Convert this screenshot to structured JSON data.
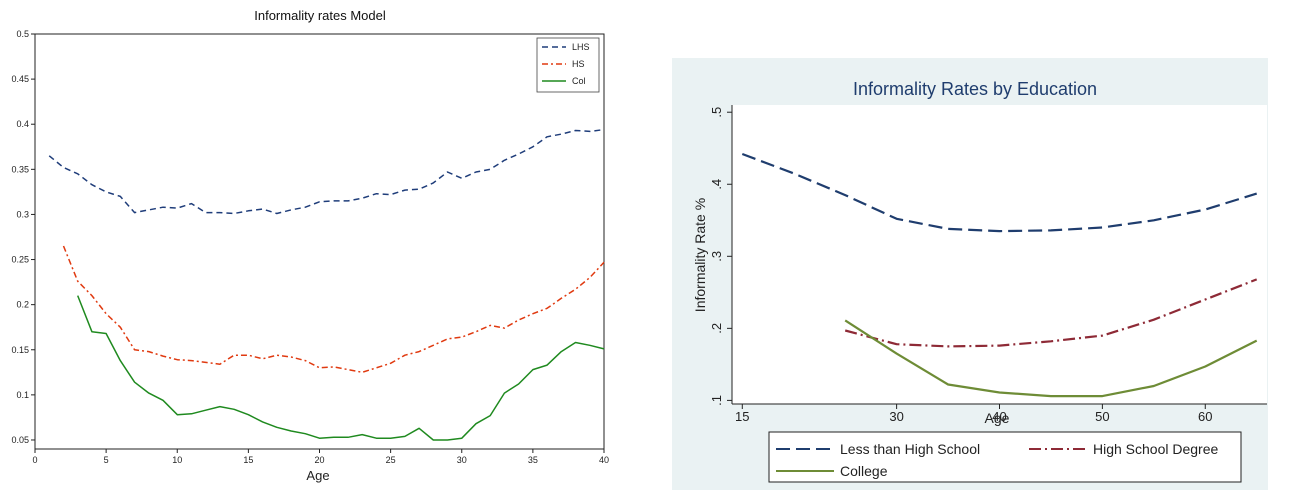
{
  "chart_data": [
    {
      "type": "line",
      "title": "Informality rates Model",
      "xlabel": "Age",
      "ylabel": "",
      "xlim": [
        0,
        40
      ],
      "ylim": [
        0.04,
        0.5
      ],
      "xticks": [
        0,
        5,
        10,
        15,
        20,
        25,
        30,
        35,
        40
      ],
      "yticks": [
        0.05,
        0.1,
        0.15,
        0.2,
        0.25,
        0.3,
        0.35,
        0.4,
        0.45,
        0.5
      ],
      "xtick_labels": [
        "0",
        "5",
        "10",
        "15",
        "20",
        "25",
        "30",
        "35",
        "40"
      ],
      "ytick_labels": [
        "0.05",
        "0.1",
        "0.15",
        "0.2",
        "0.25",
        "0.3",
        "0.35",
        "0.4",
        "0.45",
        "0.5"
      ],
      "grid": false,
      "legend_position": "top-right",
      "series": [
        {
          "name": "LHS",
          "color": "#1f3d7a",
          "dash": "dashed",
          "x": [
            1,
            2,
            3,
            4,
            5,
            6,
            7,
            8,
            9,
            10,
            11,
            12,
            13,
            14,
            15,
            16,
            17,
            18,
            19,
            20,
            21,
            22,
            23,
            24,
            25,
            26,
            27,
            28,
            29,
            30,
            31,
            32,
            33,
            34,
            35,
            36,
            37,
            38,
            39,
            40
          ],
          "y": [
            0.365,
            0.352,
            0.345,
            0.333,
            0.325,
            0.32,
            0.302,
            0.305,
            0.308,
            0.307,
            0.312,
            0.302,
            0.302,
            0.301,
            0.304,
            0.306,
            0.301,
            0.305,
            0.308,
            0.314,
            0.315,
            0.315,
            0.318,
            0.323,
            0.322,
            0.327,
            0.328,
            0.335,
            0.347,
            0.34,
            0.347,
            0.35,
            0.36,
            0.367,
            0.375,
            0.386,
            0.389,
            0.393,
            0.392,
            0.394
          ]
        },
        {
          "name": "HS",
          "color": "#e03a10",
          "dash": "dashdot",
          "x": [
            2,
            3,
            4,
            5,
            6,
            7,
            8,
            9,
            10,
            11,
            12,
            13,
            14,
            15,
            16,
            17,
            18,
            19,
            20,
            21,
            22,
            23,
            24,
            25,
            26,
            27,
            28,
            29,
            30,
            31,
            32,
            33,
            34,
            35,
            36,
            37,
            38,
            39,
            40
          ],
          "y": [
            0.265,
            0.226,
            0.21,
            0.19,
            0.175,
            0.15,
            0.148,
            0.143,
            0.139,
            0.138,
            0.136,
            0.134,
            0.144,
            0.144,
            0.14,
            0.144,
            0.142,
            0.138,
            0.13,
            0.131,
            0.128,
            0.125,
            0.13,
            0.135,
            0.144,
            0.148,
            0.155,
            0.162,
            0.164,
            0.17,
            0.177,
            0.174,
            0.183,
            0.19,
            0.196,
            0.207,
            0.217,
            0.23,
            0.247
          ]
        },
        {
          "name": "Col",
          "color": "#1f8a1f",
          "dash": "solid",
          "x": [
            3,
            4,
            5,
            6,
            7,
            8,
            9,
            10,
            11,
            12,
            13,
            14,
            15,
            16,
            17,
            18,
            19,
            20,
            21,
            22,
            23,
            24,
            25,
            26,
            27,
            28,
            29,
            30,
            31,
            32,
            33,
            34,
            35,
            36,
            37,
            38,
            39,
            40
          ],
          "y": [
            0.21,
            0.17,
            0.168,
            0.138,
            0.114,
            0.102,
            0.094,
            0.078,
            0.079,
            0.083,
            0.087,
            0.084,
            0.078,
            0.07,
            0.064,
            0.06,
            0.057,
            0.052,
            0.053,
            0.053,
            0.056,
            0.052,
            0.052,
            0.054,
            0.063,
            0.05,
            0.05,
            0.052,
            0.068,
            0.077,
            0.102,
            0.112,
            0.128,
            0.133,
            0.148,
            0.158,
            0.155,
            0.151
          ]
        }
      ]
    },
    {
      "type": "line",
      "title": "Informality Rates by Education",
      "xlabel": "Age",
      "ylabel": "Informality Rate %",
      "xlim": [
        14,
        66
      ],
      "ylim": [
        0.095,
        0.51
      ],
      "xticks": [
        15,
        30,
        40,
        50,
        60
      ],
      "yticks": [
        0.1,
        0.2,
        0.3,
        0.4,
        0.5
      ],
      "xtick_labels": [
        "15",
        "30",
        "40",
        "50",
        "60"
      ],
      "ytick_labels": [
        ".1",
        ".2",
        ".3",
        ".4",
        ".5"
      ],
      "grid": false,
      "legend_position": "bottom",
      "series": [
        {
          "name": "Less than High School",
          "color": "#1f3d6e",
          "dash": "dashed",
          "x": [
            15,
            20,
            25,
            30,
            35,
            40,
            45,
            50,
            55,
            60,
            65
          ],
          "y": [
            0.442,
            0.415,
            0.385,
            0.352,
            0.338,
            0.335,
            0.336,
            0.34,
            0.35,
            0.365,
            0.387
          ]
        },
        {
          "name": "High School Degree",
          "color": "#8e2a36",
          "dash": "dashdot",
          "x": [
            25,
            30,
            35,
            40,
            45,
            50,
            55,
            60,
            65
          ],
          "y": [
            0.197,
            0.178,
            0.175,
            0.176,
            0.182,
            0.19,
            0.212,
            0.24,
            0.268
          ]
        },
        {
          "name": "College",
          "color": "#6e8c36",
          "dash": "solid",
          "x": [
            25,
            30,
            35,
            40,
            45,
            50,
            55,
            60,
            65
          ],
          "y": [
            0.211,
            0.165,
            0.122,
            0.111,
            0.106,
            0.106,
            0.12,
            0.147,
            0.183
          ]
        }
      ]
    }
  ]
}
